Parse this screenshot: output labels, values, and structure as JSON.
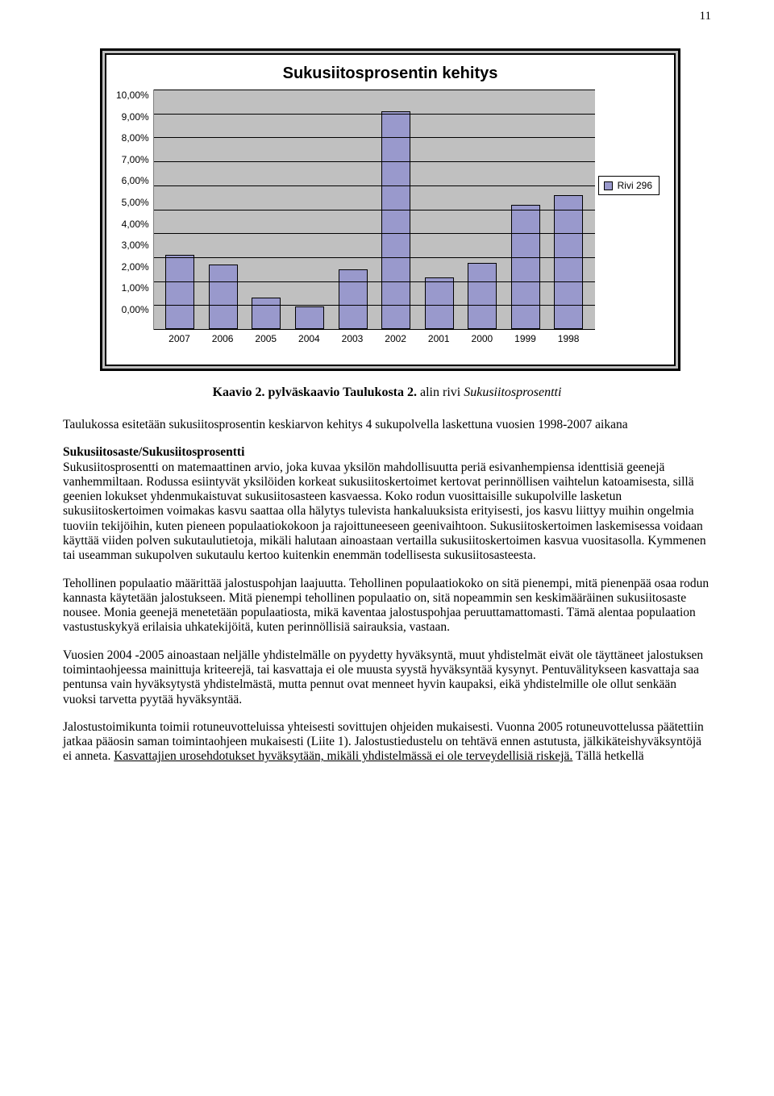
{
  "page_number": "11",
  "chart": {
    "type": "bar",
    "title": "Sukusiitosprosentin kehitys",
    "y_ticks": [
      "10,00%",
      "9,00%",
      "8,00%",
      "7,00%",
      "6,00%",
      "5,00%",
      "4,00%",
      "3,00%",
      "2,00%",
      "1,00%",
      "0,00%"
    ],
    "categories": [
      "2007",
      "2006",
      "2005",
      "2004",
      "2003",
      "2002",
      "2001",
      "2000",
      "1999",
      "1998"
    ],
    "values": [
      3.1,
      2.7,
      1.3,
      0.95,
      2.5,
      9.1,
      2.15,
      2.75,
      5.2,
      5.6
    ],
    "ymax": 10,
    "bar_color": "#9999cc",
    "plot_bg": "#c0c0c0",
    "grid_color": "#000000",
    "legend_label": "Rivi 296"
  },
  "caption_bold": "Kaavio 2. pylväskaavio Taulukosta 2.",
  "caption_rest": " alin rivi ",
  "caption_italic": "Sukusiitosprosentti",
  "paragraphs": {
    "p1_a": "Taulukossa esitetään sukusiitosprosentin keskiarvon kehitys 4 sukupolvella laskettuna vuosien 1998-2007 aikana",
    "p2_heading": "Sukusiitosaste/Sukusiitosprosentti",
    "p2_body": "Sukusiitosprosentti on matemaattinen arvio, joka kuvaa yksilön mahdollisuutta periä esivanhempiensa identtisiä geenejä vanhemmiltaan. Rodussa esiintyvät yksilöiden korkeat sukusiitoskertoimet kertovat perinnöllisen vaihtelun katoamisesta, sillä geenien lokukset yhdenmukaistuvat sukusiitosasteen kasvaessa. Koko rodun vuosittaisille sukupolville lasketun sukusiitoskertoimen voimakas kasvu saattaa olla hälytys tulevista hankaluuksista erityisesti, jos kasvu liittyy muihin ongelmia tuoviin tekijöihin, kuten pieneen populaatiokokoon ja rajoittuneeseen geenivaihtoon. Sukusiitoskertoimen laskemisessa voidaan käyttää viiden polven sukutaulutietoja, mikäli halutaan ainoastaan vertailla sukusiitoskertoimen kasvua vuositasolla. Kymmenen tai useamman sukupolven sukutaulu kertoo kuitenkin enemmän todellisesta sukusiitosasteesta.",
    "p3": "Tehollinen populaatio määrittää jalostuspohjan laajuutta. Tehollinen populaatiokoko on sitä pienempi, mitä pienenpää osaa rodun kannasta käytetään jalostukseen. Mitä pienempi tehollinen populaatio on, sitä nopeammin sen keskimääräinen sukusiitosaste nousee. Monia geenejä menetetään populaatiosta, mikä kaventaa jalostuspohjaa peruuttamattomasti. Tämä alentaa populaation vastustuskykyä erilaisia uhkatekijöitä, kuten perinnöllisiä sairauksia, vastaan.",
    "p4": "Vuosien 2004 -2005 ainoastaan neljälle yhdistelmälle on pyydetty hyväksyntä, muut yhdistelmät eivät ole täyttäneet jalostuksen toimintaohjeessa mainittuja kriteerejä, tai kasvattaja ei ole muusta syystä hyväksyntää kysynyt. Pentuvälitykseen kasvattaja saa pentunsa vain hyväksytystä yhdistelmästä, mutta pennut ovat menneet hyvin kaupaksi, eikä yhdistelmille ole ollut senkään vuoksi tarvetta pyytää hyväksyntää.",
    "p5_a": "Jalostustoimikunta toimii rotuneuvotteluissa yhteisesti sovittujen ohjeiden mukaisesti. Vuonna 2005 rotuneuvottelussa päätettiin jatkaa pääosin saman toimintaohjeen mukaisesti (Liite 1). Jalostustiedustelu on tehtävä ennen astutusta, jälkikäteishyväksyntöjä ei anneta. ",
    "p5_u": "Kasvattajien urosehdotukset hyväksytään, mikäli yhdistelmässä ei ole terveydellisiä riskejä.",
    "p5_b": " Tällä hetkellä"
  }
}
